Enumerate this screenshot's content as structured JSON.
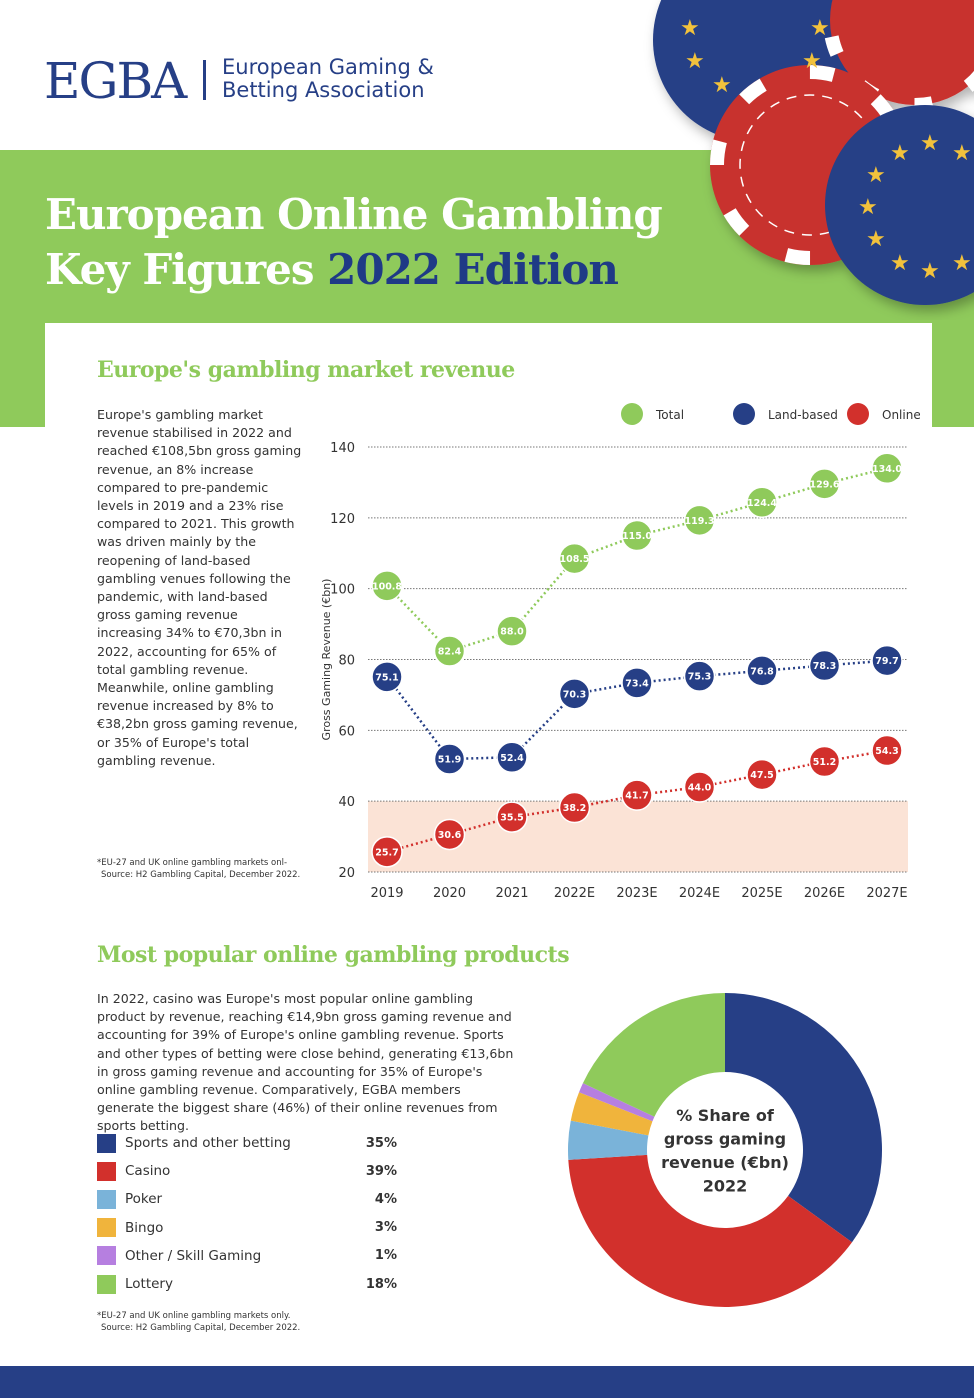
{
  "header": {
    "logo": "EGBA",
    "org_line1": "European Gaming &",
    "org_line2": "Betting Association",
    "title_line1": "European Online Gambling",
    "title_line2_a": "Key Figures ",
    "title_line2_b": "2022 Edition"
  },
  "market": {
    "heading": "Europe's gambling market revenue",
    "text": "Europe's gambling market revenue stabilised in 2022 and reached €108,5bn gross gaming revenue, an 8% increase compared to pre-pandemic levels in 2019 and a 23% rise compared to 2021. This growth was driven mainly by the reopening of land-based gambling venues following the pandemic, with land-based gross gaming revenue increasing 34% to €70,3bn in 2022, accounting for 65% of total gambling revenue. Meanwhile, online gambling revenue increased by 8% to €38,2bn gross gaming revenue, or 35% of Europe's total gambling revenue.",
    "note1": "*EU-27 and UK online gambling markets onl-",
    "note2": "Source: H2 Gambling Capital, December 2022."
  },
  "products": {
    "heading": "Most popular online gambling products",
    "text": "In 2022, casino was Europe's most popular online gambling product by revenue, reaching €14,9bn gross gaming revenue and accounting for 39% of Europe's online gambling revenue. Sports and other types of betting were close behind, generating €13,6bn in gross gaming revenue and accounting for 35% of Europe's online gambling revenue. Comparatively, EGBA members generate the biggest share (46%) of their online revenues from sports betting.",
    "note1": "*EU-27 and UK online gambling markets only.",
    "note2": "Source: H2 Gambling Capital, December 2022."
  },
  "chart_data": [
    {
      "type": "line",
      "title": "",
      "xlabel": "",
      "ylabel": "Gross Gaming Revenue (€bn)",
      "ylim": [
        20,
        140
      ],
      "yticks": [
        "140",
        "120",
        "100",
        "80",
        "60",
        "40",
        "20"
      ],
      "grid": true,
      "legend_position": "top-right",
      "categories": [
        "2019",
        "2020",
        "2021",
        "2022E",
        "2023E",
        "2024E",
        "2025E",
        "2026E",
        "2027E"
      ],
      "series": [
        {
          "name": "Total",
          "color": "#8fca5b",
          "values": [
            100.8,
            82.4,
            88.0,
            108.5,
            115.0,
            119.3,
            124.4,
            129.6,
            134.0
          ],
          "labels": [
            "100.8",
            "82.4",
            "88.0",
            "108.5",
            "115.0",
            "119.3",
            "124.4",
            "129.6",
            "134.0"
          ]
        },
        {
          "name": "Land-based",
          "color": "#263f86",
          "values": [
            75.1,
            51.9,
            52.4,
            70.3,
            73.4,
            75.3,
            76.8,
            78.3,
            79.7
          ],
          "labels": [
            "75.1",
            "51.9",
            "52.4",
            "70.3",
            "73.4",
            "75.3",
            "76.8",
            "78.3",
            "79.7"
          ]
        },
        {
          "name": "Online",
          "color": "#d2302c",
          "values": [
            25.7,
            30.6,
            35.5,
            38.2,
            41.7,
            44.0,
            47.5,
            51.2,
            54.3
          ],
          "labels": [
            "25.7",
            "30.6",
            "35.5",
            "38.2",
            "41.7",
            "44.0",
            "47.5",
            "51.2",
            "54.3"
          ]
        }
      ],
      "shaded_band": [
        20,
        40
      ]
    },
    {
      "type": "pie",
      "title": "% Share of gross gaming revenue (€bn) 2022",
      "center_line1": "% Share of",
      "center_line2": "gross gaming",
      "center_line3": "revenue (€bn)",
      "center_line4": "2022",
      "slices": [
        {
          "label": "Sports and other betting",
          "value": 35,
          "pct": "35%",
          "color": "#263f86"
        },
        {
          "label": "Casino",
          "value": 39,
          "pct": "39%",
          "color": "#d2302c"
        },
        {
          "label": "Poker",
          "value": 4,
          "pct": "4%",
          "color": "#7ab3d9"
        },
        {
          "label": "Bingo",
          "value": 3,
          "pct": "3%",
          "color": "#f0b43c"
        },
        {
          "label": "Other / Skill Gaming",
          "value": 1,
          "pct": "1%",
          "color": "#b67fe0"
        },
        {
          "label": "Lottery",
          "value": 18,
          "pct": "18%",
          "color": "#8fca5b"
        }
      ]
    }
  ]
}
